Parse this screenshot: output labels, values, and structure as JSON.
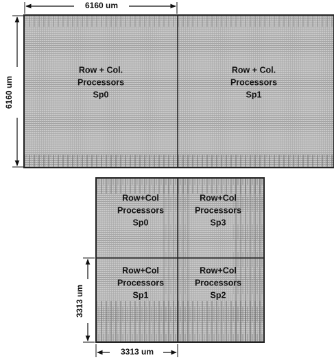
{
  "dimensions": {
    "top_width": "6160 um",
    "top_height": "6160 um",
    "bottom_height": "3313 um",
    "bottom_width": "3313 um"
  },
  "top_chip": {
    "blocks": [
      {
        "lines": [
          "Row + Col.",
          "Processors",
          "Sp0"
        ]
      },
      {
        "lines": [
          "Row + Col.",
          "Processors",
          "Sp1"
        ]
      }
    ]
  },
  "bottom_chip": {
    "blocks": [
      {
        "lines": [
          "Row+Col",
          "Processors",
          "Sp0"
        ]
      },
      {
        "lines": [
          "Row+Col",
          "Processors",
          "Sp3"
        ]
      },
      {
        "lines": [
          "Row+Col",
          "Processors",
          "Sp1"
        ]
      },
      {
        "lines": [
          "Row+Col",
          "Processors",
          "Sp2"
        ]
      }
    ]
  }
}
